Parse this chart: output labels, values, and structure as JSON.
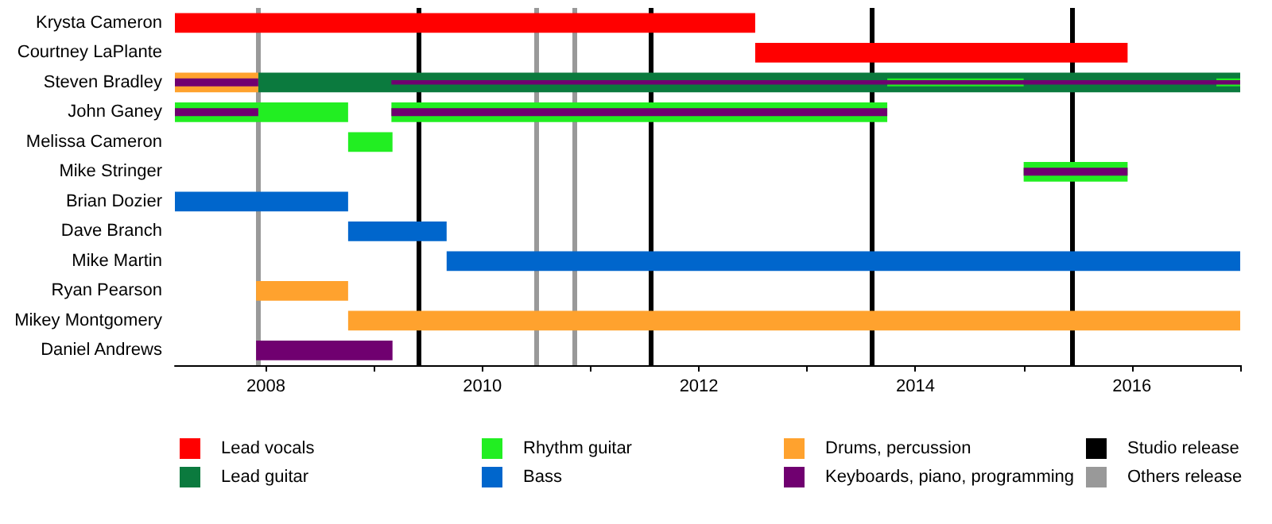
{
  "chart_data": {
    "type": "bar",
    "orientation": "horizontal",
    "legend": "bottom",
    "categories": [
      "Krysta Cameron",
      "Courtney LaPlante",
      "Steven Bradley",
      "John Ganey",
      "Melissa Cameron",
      "Mike Stringer",
      "Brian Dozier",
      "Dave Branch",
      "Mike Martin",
      "Ryan Pearson",
      "Mikey Montgomery",
      "Daniel Andrews"
    ],
    "series": [
      {
        "name": "Lead vocals",
        "color": "#ff0000",
        "base": [
          2007.16,
          2012.52,
          null,
          null,
          null,
          null,
          null,
          null,
          null,
          null,
          null,
          null
        ],
        "values": [
          5.36,
          3.44,
          null,
          null,
          null,
          null,
          null,
          null,
          null,
          null,
          null,
          null
        ]
      },
      {
        "name": "Lead guitar",
        "color": "#0b7a3e",
        "base": [
          null,
          null,
          2007.93,
          null,
          null,
          null,
          null,
          null,
          null,
          null,
          null,
          null
        ],
        "values": [
          null,
          null,
          9.07,
          null,
          null,
          null,
          null,
          null,
          null,
          null,
          null,
          null
        ]
      },
      {
        "name": "Rhythm guitar",
        "color": "#22ee22",
        "base": [
          null,
          null,
          2013.74,
          2007.16,
          2008.76,
          2015.0,
          null,
          null,
          null,
          null,
          null,
          null
        ],
        "values": [
          null,
          null,
          1.26,
          0.77,
          0.41,
          0.96,
          null,
          null,
          null,
          null,
          null,
          null
        ]
      },
      {
        "color": "#22ee22",
        "base": [
          null,
          null,
          2016.78,
          2007.93,
          null,
          null,
          null,
          null,
          null,
          null,
          null,
          null
        ],
        "values": [
          null,
          null,
          0.22,
          0.83,
          null,
          null,
          null,
          null,
          null,
          null,
          null,
          null
        ]
      },
      {
        "color": "#22ee22",
        "base": [
          null,
          null,
          null,
          2009.16,
          null,
          null,
          null,
          null,
          null,
          null,
          null,
          null
        ],
        "values": [
          null,
          null,
          null,
          4.58,
          null,
          null,
          null,
          null,
          null,
          null,
          null,
          null
        ]
      },
      {
        "name": "Bass",
        "color": "#0066cc",
        "base": [
          null,
          null,
          null,
          null,
          null,
          null,
          2007.16,
          2008.76,
          2009.67,
          null,
          null,
          null
        ],
        "values": [
          null,
          null,
          null,
          null,
          null,
          null,
          1.6,
          0.91,
          7.33,
          null,
          null,
          null
        ]
      },
      {
        "name": "Drums, percussion",
        "color": "#ffa22e",
        "base": [
          null,
          null,
          2007.16,
          null,
          null,
          null,
          null,
          null,
          null,
          2007.91,
          2008.76,
          null
        ],
        "values": [
          null,
          null,
          0.77,
          null,
          null,
          null,
          null,
          null,
          null,
          0.85,
          8.24,
          null
        ]
      },
      {
        "name": "Keyboards, piano, programming",
        "color": "#700070",
        "base": [
          null,
          null,
          2009.16,
          2007.16,
          null,
          2015.0,
          null,
          null,
          null,
          null,
          null,
          2007.91
        ],
        "values": [
          null,
          null,
          7.84,
          0.77,
          null,
          0.96,
          null,
          null,
          null,
          null,
          null,
          1.26
        ]
      },
      {
        "color": "#700070",
        "base": [
          null,
          null,
          2007.16,
          2009.16,
          null,
          null,
          null,
          null,
          null,
          null,
          null,
          null
        ],
        "values": [
          null,
          null,
          0.77,
          4.58,
          null,
          null,
          null,
          null,
          null,
          null,
          null,
          null
        ]
      }
    ],
    "xlim": [
      2007.16,
      2017
    ],
    "xticks": [
      2008,
      {
        "value": 2009,
        "label": null
      },
      2010,
      {
        "value": 2011,
        "label": null
      },
      2012,
      {
        "value": 2013,
        "label": null
      },
      2014,
      {
        "value": 2015,
        "label": null
      },
      2016,
      {
        "value": 2017,
        "label": null
      }
    ],
    "ref_lines": [
      {
        "axis": "x",
        "value": 2009.41,
        "color": "#000000",
        "label": "Studio release"
      },
      {
        "axis": "x",
        "value": 2011.55,
        "color": "#000000"
      },
      {
        "axis": "x",
        "value": 2013.59,
        "color": "#000000"
      },
      {
        "axis": "x",
        "value": 2015.44,
        "color": "#000000"
      },
      {
        "axis": "x",
        "value": 2007.93,
        "color": "#999999",
        "label": "Others release"
      },
      {
        "axis": "x",
        "value": 2010.5,
        "color": "#999999"
      },
      {
        "axis": "x",
        "value": 2010.85,
        "color": "#999999"
      }
    ]
  }
}
